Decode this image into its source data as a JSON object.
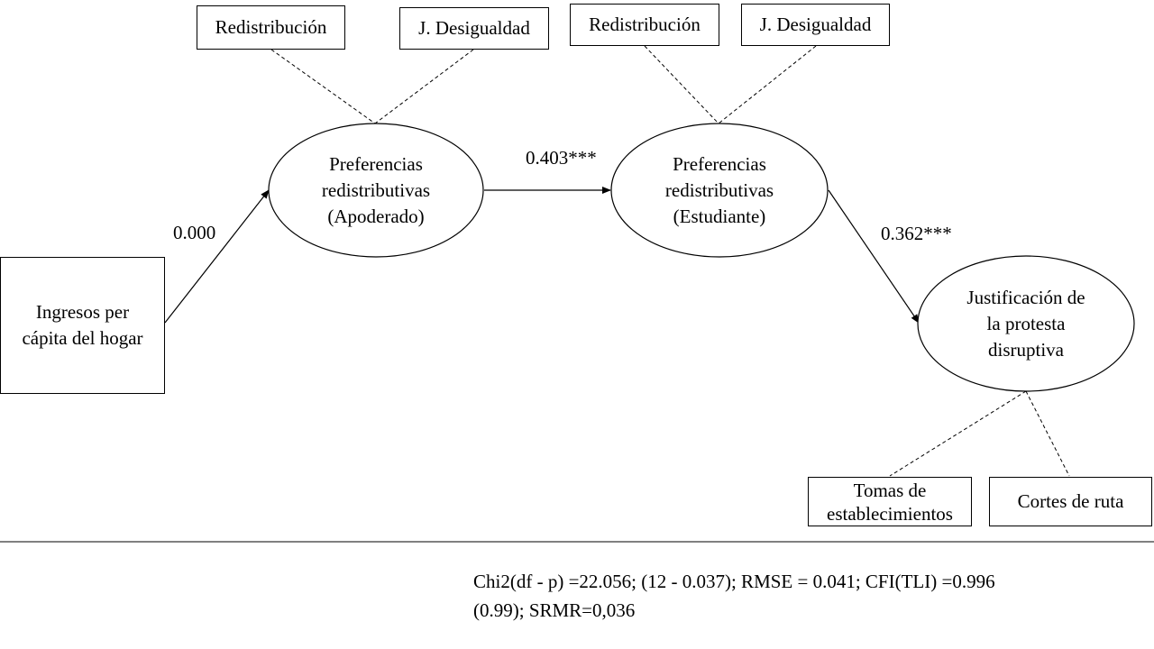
{
  "indicators": {
    "apoderado_redistribucion": "Redistribución",
    "apoderado_desigualdad": "J. Desigualdad",
    "estudiante_redistribucion": "Redistribución",
    "estudiante_desigualdad": "J. Desigualdad",
    "tomas": "Tomas de\nestablecimientos",
    "cortes": "Cortes de ruta"
  },
  "nodes": {
    "ingresos": "Ingresos per\ncápita del hogar",
    "pref_apoderado": "Preferencias\nredistributivas\n(Apoderado)",
    "pref_estudiante": "Preferencias\nredistributivas\n(Estudiante)",
    "justificacion": "Justificación de\nla protesta\ndisruptiva"
  },
  "paths": {
    "ingresos_to_apoderado": "0.000",
    "apoderado_to_estudiante": "0.403***",
    "estudiante_to_justificacion": "0.362***"
  },
  "fit": {
    "line1": "Chi2(df - p) =22.056; (12 - 0.037); RMSE = 0.041;  CFI(TLI) =0.996",
    "line2": "(0.99); SRMR=0,036"
  }
}
